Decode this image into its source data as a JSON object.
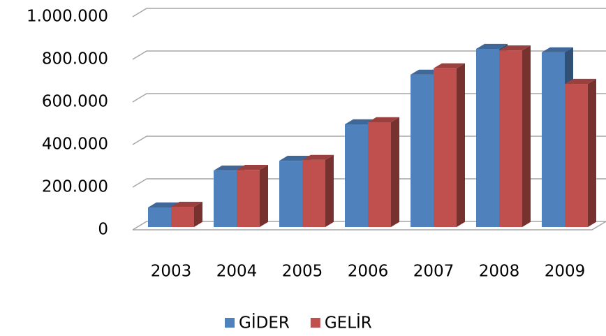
{
  "chart_data": {
    "type": "bar3d",
    "categories": [
      "2003",
      "2004",
      "2005",
      "2006",
      "2007",
      "2008",
      "2009"
    ],
    "series": [
      {
        "name": "GİDER",
        "color": "#4f81bd",
        "values": [
          92000,
          265000,
          311000,
          482000,
          715000,
          836000,
          820000
        ]
      },
      {
        "name": "GELİR",
        "color": "#c0504d",
        "values": [
          95000,
          268000,
          315000,
          492000,
          745000,
          829000,
          672000
        ]
      }
    ],
    "ylim": [
      0,
      1000000
    ],
    "yticks": [
      0,
      {
        "value": 200000,
        "label": "200.000"
      },
      {
        "value": 400000,
        "label": "400.000"
      },
      {
        "value": 600000,
        "label": "600.000"
      },
      {
        "value": 800000,
        "label": "800.000"
      },
      {
        "value": 1000000,
        "label": "1.000.000"
      }
    ],
    "grid": true,
    "legend": "bottom"
  }
}
